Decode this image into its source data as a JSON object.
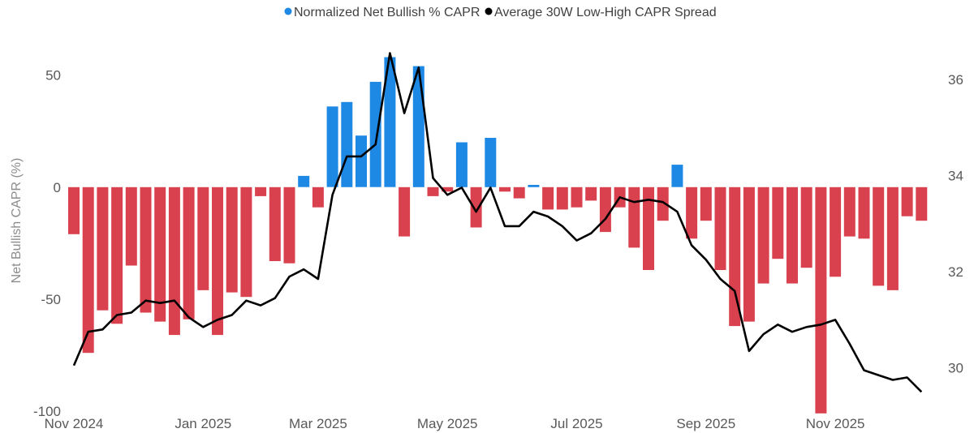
{
  "chart_data": {
    "type": "bar+line",
    "title": "",
    "legend_position": "top-center",
    "ylabel": "Net Bullish CAPR (%)",
    "y2label": "",
    "ylim": [
      -100,
      60
    ],
    "y2lim": [
      29.1,
      37.2
    ],
    "y_ticks": [
      "50",
      "0",
      "-50",
      "-100"
    ],
    "y_tick_values": [
      50,
      0,
      -50,
      -100
    ],
    "y2_ticks": [
      "36",
      "34",
      "32",
      "30"
    ],
    "y2_tick_values": [
      36,
      34,
      32,
      30
    ],
    "x_ticks": [
      "Nov 2024",
      "Jan 2025",
      "Mar 2025",
      "May 2025",
      "Jul 2025",
      "Sep 2025",
      "Nov 2025"
    ],
    "x_tick_week_index": [
      0,
      9,
      17,
      26,
      35,
      44,
      53
    ],
    "colors": {
      "positive": "#1e88e5",
      "negative": "#d9414e",
      "line": "#000000"
    },
    "series": [
      {
        "name": "Normalized Net Bullish % CAPR",
        "type": "bar",
        "legend_color": "#1e88e5",
        "values": [
          -21,
          -74,
          -55,
          -61,
          -35,
          -56,
          -60,
          -66,
          -59,
          -46,
          -66,
          -47,
          -49,
          -4,
          -33,
          -34,
          5,
          -9,
          36,
          38,
          23,
          47,
          58,
          -22,
          54,
          -4,
          -2,
          20,
          -18,
          22,
          -2,
          -5,
          1,
          -10,
          -10,
          -9,
          -6,
          -20,
          -9,
          -27,
          -37,
          -15,
          10,
          -23,
          -15,
          -37,
          -62,
          -60,
          -43,
          -32,
          -43,
          -36,
          -101,
          -40,
          -22,
          -23,
          -44,
          -46,
          -13,
          -15
        ]
      },
      {
        "name": "Average 30W Low-High CAPR Spread",
        "type": "line",
        "axis": "right",
        "legend_color": "#000000",
        "values": [
          30.05,
          30.75,
          30.8,
          31.1,
          31.15,
          31.4,
          31.35,
          31.4,
          31.05,
          30.85,
          31.0,
          31.1,
          31.4,
          31.3,
          31.45,
          31.9,
          32.05,
          31.85,
          33.6,
          34.4,
          34.4,
          34.65,
          36.55,
          35.3,
          36.25,
          33.95,
          33.6,
          33.75,
          33.25,
          33.75,
          32.95,
          32.95,
          33.25,
          33.15,
          32.95,
          32.65,
          32.8,
          33.1,
          33.55,
          33.45,
          33.5,
          33.45,
          33.25,
          32.55,
          32.25,
          31.85,
          31.6,
          30.35,
          30.7,
          30.9,
          30.75,
          30.85,
          30.9,
          31.0,
          30.5,
          29.95,
          29.85,
          29.75,
          29.8,
          29.5
        ]
      }
    ]
  }
}
